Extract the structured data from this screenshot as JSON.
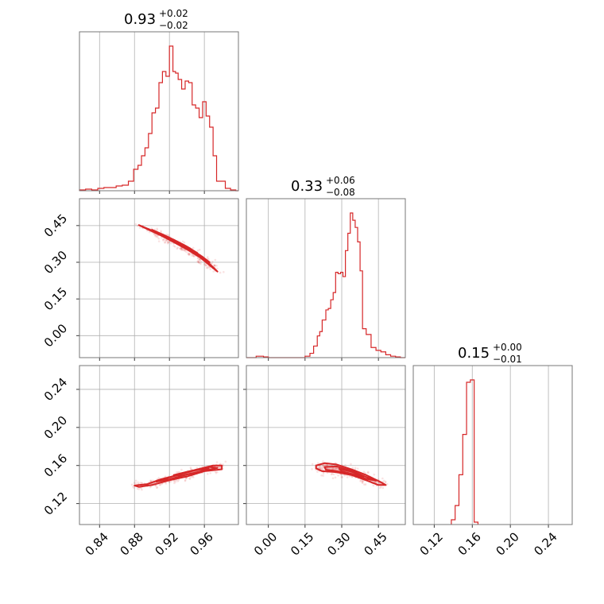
{
  "chart_data": {
    "type": "corner",
    "color": "#d62728",
    "grid": true,
    "parameters": [
      {
        "range": [
          0.817,
          0.999
        ],
        "ticks": [
          0.84,
          0.88,
          0.92,
          0.96
        ],
        "tick_labels": [
          "0.84",
          "0.88",
          "0.92",
          "0.96"
        ],
        "title": {
          "median": "0.93",
          "plus": "+0.02",
          "minus": "−0.02"
        },
        "histogram": {
          "bins": [
            0.817,
            0.824,
            0.831,
            0.838,
            0.845,
            0.852,
            0.859,
            0.866,
            0.873,
            0.879,
            0.884,
            0.888,
            0.892,
            0.896,
            0.9,
            0.904,
            0.908,
            0.912,
            0.916,
            0.92,
            0.924,
            0.927,
            0.93,
            0.934,
            0.938,
            0.942,
            0.946,
            0.95,
            0.954,
            0.958,
            0.962,
            0.966,
            0.97,
            0.974,
            0.978,
            0.984,
            0.99,
            0.996,
            0.999
          ],
          "counts": [
            0.005,
            0.01,
            0.005,
            0.015,
            0.02,
            0.02,
            0.03,
            0.035,
            0.06,
            0.135,
            0.16,
            0.22,
            0.27,
            0.36,
            0.49,
            0.52,
            0.68,
            0.75,
            0.72,
            0.91,
            0.75,
            0.74,
            0.7,
            0.64,
            0.69,
            0.68,
            0.54,
            0.52,
            0.46,
            0.56,
            0.47,
            0.4,
            0.22,
            0.06,
            0.06,
            0.015,
            0.005,
            0.0
          ]
        }
      },
      {
        "range": [
          -0.09,
          0.56
        ],
        "ticks": [
          0.0,
          0.15,
          0.3,
          0.45
        ],
        "tick_labels": [
          "0.00",
          "0.15",
          "0.30",
          "0.45"
        ],
        "title": {
          "median": "0.33",
          "plus": "+0.06",
          "minus": "−0.08"
        },
        "histogram": {
          "bins": [
            -0.09,
            -0.05,
            -0.02,
            0.0,
            0.05,
            0.1,
            0.15,
            0.17,
            0.185,
            0.2,
            0.21,
            0.22,
            0.235,
            0.245,
            0.255,
            0.265,
            0.275,
            0.285,
            0.295,
            0.305,
            0.315,
            0.325,
            0.335,
            0.345,
            0.355,
            0.365,
            0.375,
            0.385,
            0.4,
            0.42,
            0.44,
            0.46,
            0.48,
            0.5,
            0.52,
            0.54,
            0.56
          ],
          "counts": [
            0.0,
            0.01,
            0.005,
            0.0,
            0.0,
            0.0,
            0.01,
            0.03,
            0.08,
            0.15,
            0.18,
            0.26,
            0.33,
            0.34,
            0.4,
            0.45,
            0.59,
            0.58,
            0.59,
            0.56,
            0.74,
            0.86,
            1.0,
            0.95,
            0.9,
            0.8,
            0.6,
            0.2,
            0.16,
            0.07,
            0.05,
            0.04,
            0.02,
            0.01,
            0.005,
            0.0
          ]
        }
      },
      {
        "range": [
          0.098,
          0.265
        ],
        "ticks": [
          0.12,
          0.16,
          0.2,
          0.24
        ],
        "tick_labels": [
          "0.12",
          "0.16",
          "0.20",
          "0.24"
        ],
        "title": {
          "median": "0.15",
          "plus": "+0.00",
          "minus": "−0.01"
        },
        "histogram": {
          "bins": [
            0.138,
            0.142,
            0.146,
            0.15,
            0.154,
            0.158,
            0.162,
            0.166
          ],
          "counts": [
            0.02,
            0.08,
            0.21,
            0.38,
            0.6,
            0.61,
            0.01
          ]
        }
      }
    ],
    "pairs": [
      {
        "x": 0,
        "y": 1,
        "contours": [
          [
            [
              0.885,
              0.452
            ],
            [
              0.9,
              0.43
            ],
            [
              0.915,
              0.405
            ],
            [
              0.93,
              0.378
            ],
            [
              0.945,
              0.348
            ],
            [
              0.96,
              0.312
            ],
            [
              0.97,
              0.28
            ],
            [
              0.975,
              0.262
            ],
            [
              0.966,
              0.288
            ],
            [
              0.955,
              0.32
            ],
            [
              0.94,
              0.353
            ],
            [
              0.925,
              0.382
            ],
            [
              0.91,
              0.41
            ],
            [
              0.895,
              0.435
            ]
          ],
          [
            [
              0.9,
              0.433
            ],
            [
              0.915,
              0.409
            ],
            [
              0.93,
              0.382
            ],
            [
              0.945,
              0.353
            ],
            [
              0.958,
              0.322
            ],
            [
              0.966,
              0.3
            ],
            [
              0.96,
              0.316
            ],
            [
              0.947,
              0.345
            ],
            [
              0.932,
              0.373
            ],
            [
              0.917,
              0.399
            ],
            [
              0.905,
              0.42
            ]
          ],
          [
            [
              0.912,
              0.414
            ],
            [
              0.925,
              0.392
            ],
            [
              0.94,
              0.364
            ],
            [
              0.952,
              0.338
            ],
            [
              0.945,
              0.35
            ],
            [
              0.932,
              0.376
            ],
            [
              0.918,
              0.402
            ]
          ],
          [
            [
              0.925,
              0.391
            ],
            [
              0.936,
              0.372
            ],
            [
              0.944,
              0.356
            ],
            [
              0.938,
              0.367
            ],
            [
              0.928,
              0.385
            ]
          ]
        ]
      },
      {
        "x": 0,
        "y": 2,
        "contours": [
          [
            [
              0.88,
              0.139
            ],
            [
              0.895,
              0.1405
            ],
            [
              0.91,
              0.1455
            ],
            [
              0.93,
              0.15
            ],
            [
              0.95,
              0.1555
            ],
            [
              0.97,
              0.16
            ],
            [
              0.98,
              0.16
            ],
            [
              0.98,
              0.156
            ],
            [
              0.96,
              0.154
            ],
            [
              0.94,
              0.1485
            ],
            [
              0.92,
              0.1445
            ],
            [
              0.9,
              0.1395
            ],
            [
              0.885,
              0.1375
            ]
          ],
          [
            [
              0.905,
              0.143
            ],
            [
              0.925,
              0.149
            ],
            [
              0.945,
              0.154
            ],
            [
              0.965,
              0.1585
            ],
            [
              0.975,
              0.1575
            ],
            [
              0.96,
              0.1545
            ],
            [
              0.94,
              0.1505
            ],
            [
              0.92,
              0.1455
            ]
          ],
          [
            [
              0.925,
              0.15
            ],
            [
              0.945,
              0.1545
            ],
            [
              0.965,
              0.157
            ],
            [
              0.955,
              0.1535
            ],
            [
              0.935,
              0.1495
            ]
          ]
        ]
      },
      {
        "x": 1,
        "y": 2,
        "contours": [
          [
            [
              0.195,
              0.16
            ],
            [
              0.23,
              0.1625
            ],
            [
              0.28,
              0.161
            ],
            [
              0.34,
              0.156
            ],
            [
              0.4,
              0.15
            ],
            [
              0.46,
              0.1425
            ],
            [
              0.48,
              0.1395
            ],
            [
              0.45,
              0.1395
            ],
            [
              0.4,
              0.1445
            ],
            [
              0.34,
              0.15
            ],
            [
              0.28,
              0.153
            ],
            [
              0.22,
              0.154
            ],
            [
              0.195,
              0.157
            ]
          ],
          [
            [
              0.23,
              0.1585
            ],
            [
              0.28,
              0.159
            ],
            [
              0.34,
              0.1545
            ],
            [
              0.4,
              0.148
            ],
            [
              0.44,
              0.144
            ],
            [
              0.4,
              0.146
            ],
            [
              0.34,
              0.151
            ],
            [
              0.27,
              0.1545
            ],
            [
              0.235,
              0.1555
            ]
          ],
          [
            [
              0.29,
              0.1565
            ],
            [
              0.34,
              0.1535
            ],
            [
              0.39,
              0.1485
            ],
            [
              0.35,
              0.1505
            ],
            [
              0.3,
              0.154
            ]
          ]
        ]
      }
    ]
  }
}
